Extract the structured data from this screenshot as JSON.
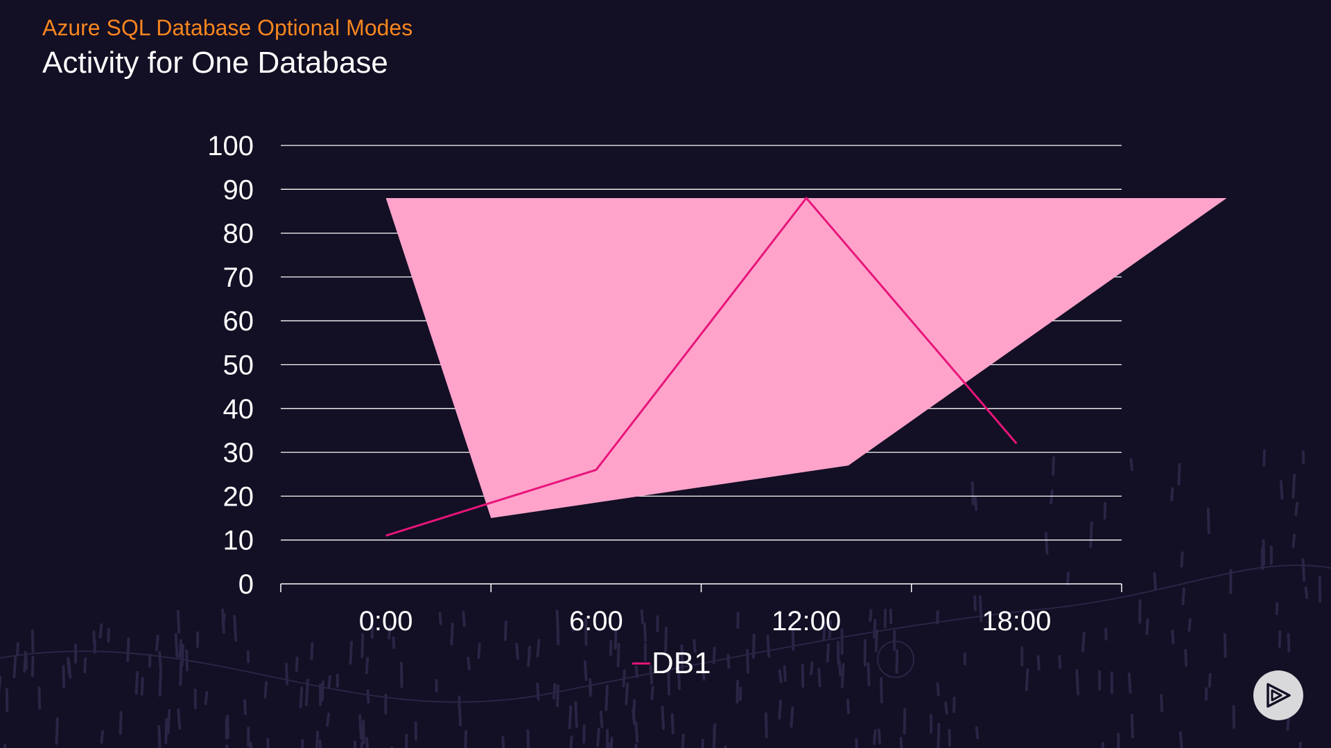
{
  "header": {
    "subtitle": "Azure SQL Database Optional Modes",
    "title": "Activity for One Database"
  },
  "chart_data": {
    "type": "line",
    "title": "Activity for One Database",
    "xlabel": "",
    "ylabel": "",
    "ylim": [
      0,
      100
    ],
    "yticks": [
      "0",
      "10",
      "20",
      "30",
      "40",
      "50",
      "60",
      "70",
      "80",
      "90",
      "100"
    ],
    "categories": [
      "0:00",
      "6:00",
      "12:00",
      "18:00"
    ],
    "series": [
      {
        "name": "DB1",
        "values": [
          11,
          26,
          88,
          32
        ],
        "color": "#e8157a"
      }
    ],
    "shaded_area": {
      "color": "#ffa3cb",
      "points": [
        [
          0,
          88
        ],
        [
          0.5,
          15
        ],
        [
          2.2,
          27
        ],
        [
          4.0,
          88
        ]
      ]
    },
    "legend": {
      "placement": "bottom-center",
      "entries": [
        "DB1"
      ]
    },
    "grid": true
  },
  "colors": {
    "background": "#130f24",
    "accent": "#f7861f",
    "series_line": "#e8157a",
    "shaded": "#ffa3cb",
    "gridline": "#ffffff"
  },
  "badge": {
    "icon": "play-logo-icon"
  }
}
